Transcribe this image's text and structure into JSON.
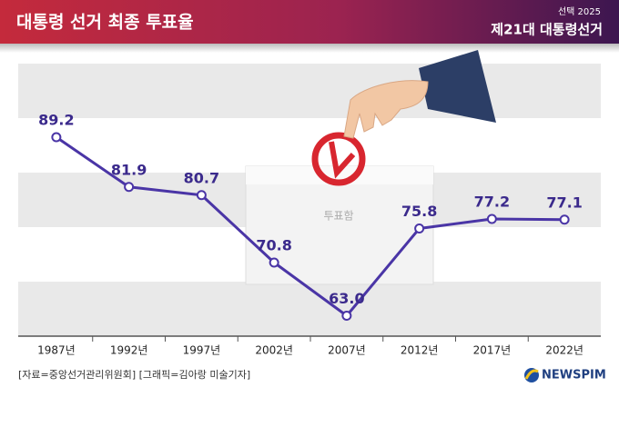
{
  "chart_data": {
    "type": "line",
    "title": "대통령 선거 최종 투표율",
    "badge_small": "선택 2025",
    "badge": "제21대 대통령선거",
    "annotation": "투표함",
    "source": "[자료=중앙선거관리위원회] [그래픽=김아랑 미술기자]",
    "brand": "NEWSPIM",
    "categories": [
      "1987년",
      "1992년",
      "1997년",
      "2002년",
      "2007년",
      "2012년",
      "2017년",
      "2022년"
    ],
    "values": [
      89.2,
      81.9,
      80.7,
      70.8,
      63.0,
      75.8,
      77.2,
      77.1
    ],
    "value_labels": [
      "89.2",
      "81.9",
      "80.7",
      "70.8",
      "63.0",
      "75.8",
      "77.2",
      "77.1"
    ],
    "color": "#4a35a6",
    "ylim": [
      60,
      100
    ]
  }
}
